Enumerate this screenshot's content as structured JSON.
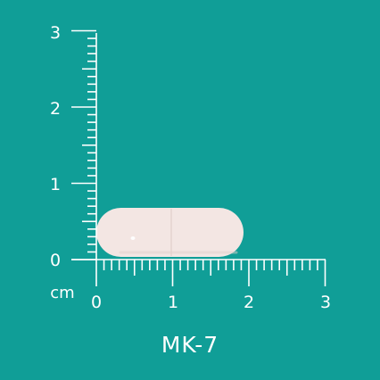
{
  "colors": {
    "background": "#109e97",
    "ruler": "#ffffff",
    "capsule": "#f3e6e3",
    "capsule_shade": "#e2cfcb"
  },
  "ruler": {
    "unit": "cm",
    "x_ticks": [
      "0",
      "1",
      "2",
      "3"
    ],
    "y_ticks": [
      "0",
      "1",
      "2",
      "3"
    ],
    "minor_per_unit": 10
  },
  "product": {
    "name": "MK-7",
    "shape": "capsule",
    "length_cm": 1.9,
    "width_cm": 0.65
  }
}
